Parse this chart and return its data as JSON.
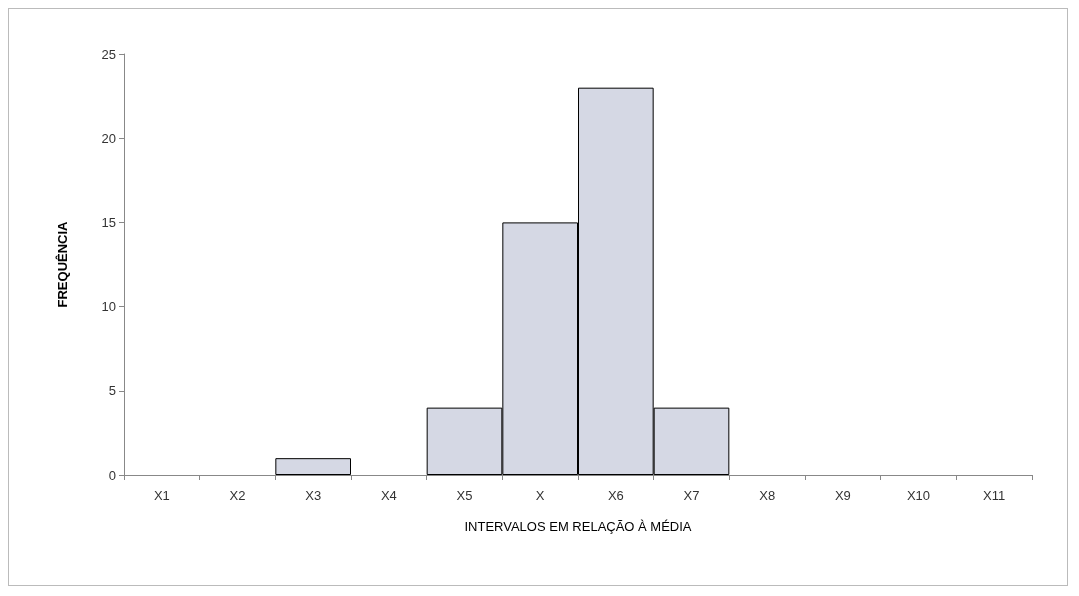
{
  "chart_data": {
    "type": "bar",
    "xlabel": "INTERVALOS EM RELAÇÃO À MÉDIA",
    "ylabel": "FREQUÊNCIA",
    "categories": [
      "X1",
      "X2",
      "X3",
      "X4",
      "X5",
      "X",
      "X6",
      "X7",
      "X8",
      "X9",
      "X10",
      "X11"
    ],
    "values": [
      0,
      0,
      1,
      0,
      4,
      15,
      23,
      4,
      0,
      0,
      0,
      0
    ],
    "color": "#d5d8e4",
    "ylim": [
      0,
      25
    ],
    "yticks": [
      0,
      5,
      10,
      15,
      20,
      25
    ],
    "grid": false
  }
}
